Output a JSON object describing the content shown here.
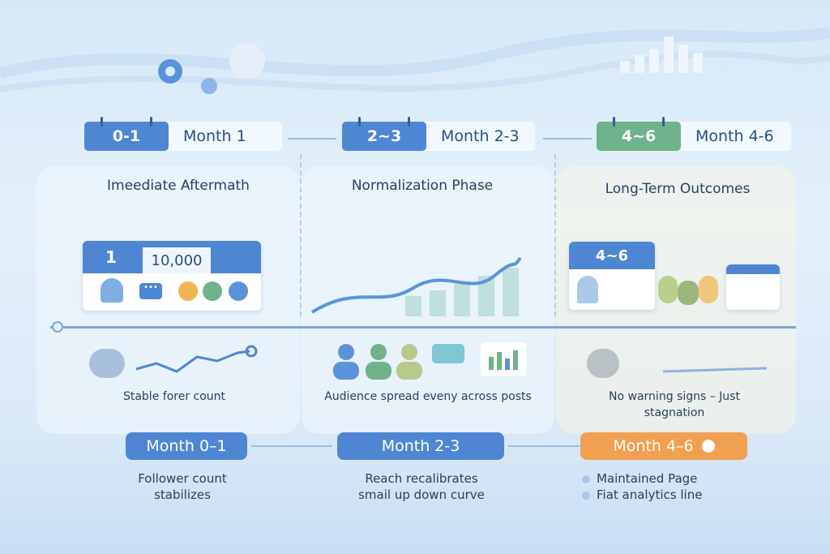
{
  "colors": {
    "blue": "#4f86d3",
    "green": "#6fb28c",
    "orange": "#f0a050",
    "text": "#2a4d80"
  },
  "headers": [
    {
      "badge": "0-1",
      "label": "Month 1"
    },
    {
      "badge": "2~3",
      "label": "Month 2-3"
    },
    {
      "badge": "4~6",
      "label": "Month 4-6"
    }
  ],
  "phases": [
    "Imeediate Aftermath",
    "Normalization Phase",
    "Long-Term Outcomes"
  ],
  "cards": {
    "month": "1",
    "followers": "10,000",
    "long_badge": "4~6"
  },
  "captions": [
    "Stable forer count",
    "Audience spread eveny across posts",
    "No warning signs – Just stagnation"
  ],
  "pills": [
    "Month 0–1",
    "Month 2-3",
    "Month 4–6"
  ],
  "notes": {
    "col1": [
      "Follower count",
      "stabilizes"
    ],
    "col2": [
      "Reach recalibrates",
      "smail up down curve"
    ],
    "col3": [
      "Maintained Page",
      "Fiat analytics line"
    ]
  },
  "icons": [
    "gear-icon",
    "bar-chart-icon",
    "calendar-icon",
    "user-icon",
    "chat-icon",
    "heart-icon",
    "smile-icon",
    "thumbs-up-icon",
    "trend-up-icon",
    "group-icon"
  ]
}
